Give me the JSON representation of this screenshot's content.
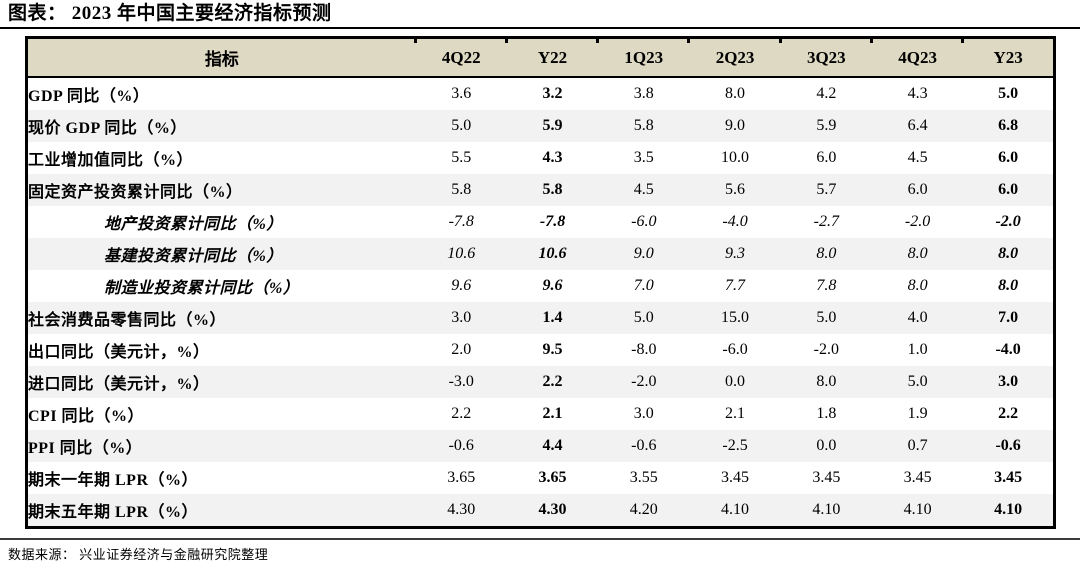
{
  "title": "图表： 2023 年中国主要经济指标预测",
  "table": {
    "header_label": "指标",
    "columns": [
      "4Q22",
      "Y22",
      "1Q23",
      "2Q23",
      "3Q23",
      "4Q23",
      "Y23"
    ],
    "bold_columns": [
      1,
      6
    ],
    "rows": [
      {
        "label": "GDP 同比（%）",
        "style": "main",
        "values": [
          "3.6",
          "3.2",
          "3.8",
          "8.0",
          "4.2",
          "4.3",
          "5.0"
        ]
      },
      {
        "label": "现价 GDP 同比（%）",
        "style": "main",
        "values": [
          "5.0",
          "5.9",
          "5.8",
          "9.0",
          "5.9",
          "6.4",
          "6.8"
        ]
      },
      {
        "label": "工业增加值同比（%）",
        "style": "main",
        "values": [
          "5.5",
          "4.3",
          "3.5",
          "10.0",
          "6.0",
          "4.5",
          "6.0"
        ]
      },
      {
        "label": "固定资产投资累计同比（%）",
        "style": "main",
        "values": [
          "5.8",
          "5.8",
          "4.5",
          "5.6",
          "5.7",
          "6.0",
          "6.0"
        ]
      },
      {
        "label": "地产投资累计同比（%）",
        "style": "sub",
        "values": [
          "-7.8",
          "-7.8",
          "-6.0",
          "-4.0",
          "-2.7",
          "-2.0",
          "-2.0"
        ]
      },
      {
        "label": "基建投资累计同比（%）",
        "style": "sub",
        "values": [
          "10.6",
          "10.6",
          "9.0",
          "9.3",
          "8.0",
          "8.0",
          "8.0"
        ]
      },
      {
        "label": "制造业投资累计同比（%）",
        "style": "sub",
        "values": [
          "9.6",
          "9.6",
          "7.0",
          "7.7",
          "7.8",
          "8.0",
          "8.0"
        ]
      },
      {
        "label": "社会消费品零售同比（%）",
        "style": "main",
        "values": [
          "3.0",
          "1.4",
          "5.0",
          "15.0",
          "5.0",
          "4.0",
          "7.0"
        ]
      },
      {
        "label": "出口同比（美元计，%）",
        "style": "main",
        "values": [
          "2.0",
          "9.5",
          "-8.0",
          "-6.0",
          "-2.0",
          "1.0",
          "-4.0"
        ]
      },
      {
        "label": "进口同比（美元计，%）",
        "style": "main",
        "values": [
          "-3.0",
          "2.2",
          "-2.0",
          "0.0",
          "8.0",
          "5.0",
          "3.0"
        ]
      },
      {
        "label": "CPI 同比（%）",
        "style": "main",
        "values": [
          "2.2",
          "2.1",
          "3.0",
          "2.1",
          "1.8",
          "1.9",
          "2.2"
        ]
      },
      {
        "label": "PPI 同比（%）",
        "style": "main",
        "values": [
          "-0.6",
          "4.4",
          "-0.6",
          "-2.5",
          "0.0",
          "0.7",
          "-0.6"
        ]
      },
      {
        "label": "期末一年期 LPR（%）",
        "style": "main",
        "values": [
          "3.65",
          "3.65",
          "3.55",
          "3.45",
          "3.45",
          "3.45",
          "3.45"
        ]
      },
      {
        "label": "期末五年期 LPR（%）",
        "style": "main",
        "values": [
          "4.30",
          "4.30",
          "4.20",
          "4.10",
          "4.10",
          "4.10",
          "4.10"
        ]
      }
    ]
  },
  "footer": {
    "source": "数据来源： 兴业证券经济与金融研究院整理"
  },
  "colors": {
    "header_bg": "#ddd9c3",
    "band_bg": "#f2f2f2",
    "border": "#000000",
    "text": "#000000"
  }
}
